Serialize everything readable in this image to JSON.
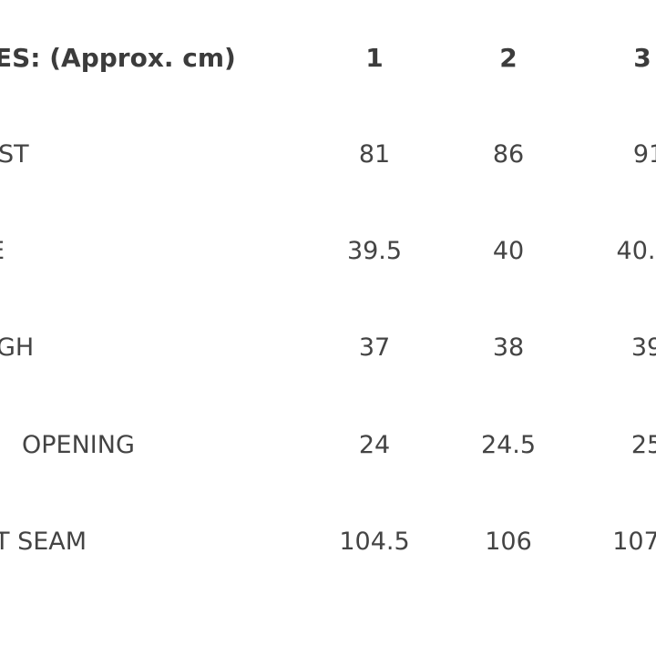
{
  "header": {
    "label": "ES: (Approx. cm)",
    "sizes": [
      "1",
      "2",
      "3"
    ]
  },
  "rows": [
    {
      "label": "ST",
      "values": [
        "81",
        "86",
        "91"
      ]
    },
    {
      "label": "E",
      "values": [
        "39.5",
        "40",
        "40."
      ]
    },
    {
      "label": "GH",
      "values": [
        "37",
        "38",
        "39"
      ]
    },
    {
      "label": "OPENING",
      "values": [
        "24",
        "24.5",
        "25"
      ]
    },
    {
      "label": "T SEAM",
      "values": [
        "104.5",
        "106",
        "107"
      ]
    }
  ]
}
